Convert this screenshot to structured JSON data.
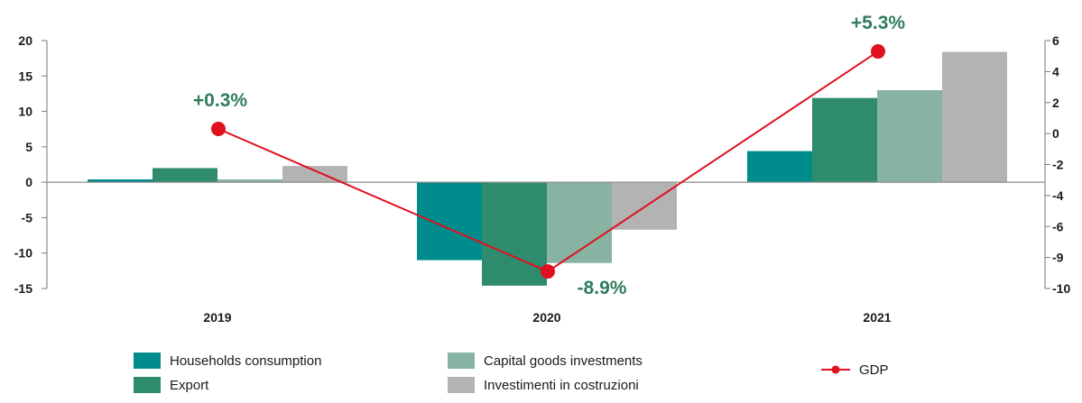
{
  "chart_data": {
    "type": "bar",
    "categories": [
      "2019",
      "2020",
      "2021"
    ],
    "series": [
      {
        "name": "Households consumption",
        "values": [
          0.4,
          -11.0,
          4.4
        ],
        "color": "#008c8c"
      },
      {
        "name": "Export",
        "values": [
          2.0,
          -14.6,
          11.9
        ],
        "color": "#2e8b6e"
      },
      {
        "name": "Capital goods investments",
        "values": [
          0.4,
          -11.4,
          13.0
        ],
        "color": "#86b3a2"
      },
      {
        "name": "Investimenti in costruzioni",
        "values": [
          2.3,
          -6.7,
          18.4
        ],
        "color": "#b3b3b3"
      }
    ],
    "line_series": {
      "name": "GDP",
      "values": [
        0.3,
        -8.9,
        5.3
      ],
      "labels": [
        "+0.3%",
        "-8.9%",
        "+5.3%"
      ],
      "color": "#e0101e"
    },
    "y_left": {
      "ylim": [
        -15,
        20
      ],
      "ticks": [
        "20",
        "15",
        "10",
        "5",
        "0",
        "-5",
        "-10",
        "-15"
      ]
    },
    "y_right": {
      "ticks": [
        "6",
        "4",
        "2",
        "0",
        "-2",
        "-4",
        "-6",
        "-9",
        "-10"
      ]
    },
    "title": "",
    "xlabel": "",
    "ylabel": "",
    "legend_position": "bottom"
  }
}
